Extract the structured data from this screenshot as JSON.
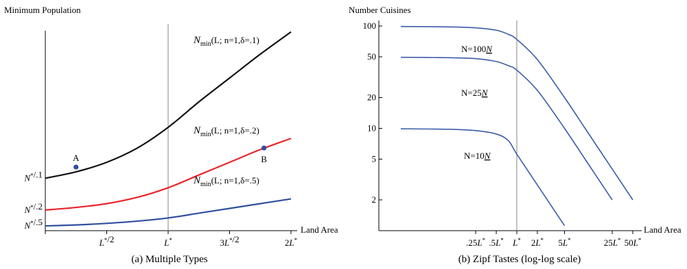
{
  "chart_data": [
    {
      "type": "line",
      "caption": "(a) Multiple Types",
      "ylabel": "Minimum Population",
      "xlabel": "Land Area",
      "x_ticks": [
        {
          "value": 0.5,
          "label": "L*/2"
        },
        {
          "value": 1.0,
          "label": "L*"
        },
        {
          "value": 1.5,
          "label": "3L*/2"
        },
        {
          "value": 2.0,
          "label": "2L*"
        }
      ],
      "y_ticks": [
        {
          "value": 1.0,
          "label": "N*/.5"
        },
        {
          "value": 1.5,
          "label": "N*/.2"
        },
        {
          "value": 2.5,
          "label": "N*/.1"
        }
      ],
      "xlim": [
        0,
        2.05
      ],
      "ylim": [
        0.85,
        7.2
      ],
      "vline_x": 1.0,
      "series": [
        {
          "name": "Nmin(L; n=1,δ=.1)",
          "label_main": "N",
          "label_sub": "min",
          "label_rest": "(L; n=1,δ=.1)",
          "color": "#111111",
          "x": [
            0,
            0.25,
            0.5,
            0.75,
            1.0,
            1.25,
            1.5,
            1.75,
            2.0
          ],
          "y": [
            2.5,
            2.7,
            3.0,
            3.45,
            4.1,
            4.9,
            5.65,
            6.4,
            7.1
          ]
        },
        {
          "name": "Nmin(L; n=1,δ=.2)",
          "label_main": "N",
          "label_sub": "min",
          "label_rest": "(L; n=1,δ=.2)",
          "color": "#e8252a",
          "x": [
            0,
            0.25,
            0.5,
            0.75,
            1.0,
            1.25,
            1.5,
            1.75,
            2.0
          ],
          "y": [
            1.5,
            1.58,
            1.7,
            1.9,
            2.2,
            2.6,
            3.0,
            3.4,
            3.75
          ]
        },
        {
          "name": "Nmin(L; n=1,δ=.5)",
          "label_main": "N",
          "label_sub": "min",
          "label_rest": "(L; n=1,δ=.5)",
          "color": "#2f4f9f",
          "x": [
            0,
            0.25,
            0.5,
            0.75,
            1.0,
            1.25,
            1.5,
            1.75,
            2.0
          ],
          "y": [
            1.0,
            1.03,
            1.08,
            1.15,
            1.25,
            1.4,
            1.55,
            1.7,
            1.85
          ]
        }
      ],
      "points": [
        {
          "label": "A",
          "x": 0.25,
          "y": 2.85,
          "color": "#2f4f9f"
        },
        {
          "label": "B",
          "x": 1.78,
          "y": 3.45,
          "color": "#2f4f9f"
        }
      ]
    },
    {
      "type": "line",
      "caption": "(b) Zipf Tastes (log-log scale)",
      "scale": "log-log",
      "ylabel": "Number Cuisines",
      "xlabel": "Land Area",
      "x_ticks": [
        {
          "value": 0.25,
          "label": ".25L*"
        },
        {
          "value": 0.5,
          "label": ".5L*"
        },
        {
          "value": 1,
          "label": "L*"
        },
        {
          "value": 2,
          "label": "2L*"
        },
        {
          "value": 5,
          "label": "5L*"
        },
        {
          "value": 25,
          "label": "25L*"
        },
        {
          "value": 50,
          "label": "50L*"
        }
      ],
      "y_ticks": [
        {
          "value": 2,
          "label": "2"
        },
        {
          "value": 5,
          "label": "5"
        },
        {
          "value": 10,
          "label": "10"
        },
        {
          "value": 20,
          "label": "20"
        },
        {
          "value": 50,
          "label": "50"
        },
        {
          "value": 100,
          "label": "100"
        }
      ],
      "xlim": [
        0.02,
        60
      ],
      "ylim": [
        1,
        110
      ],
      "vline_x": 1,
      "series": [
        {
          "name": "N=100N",
          "label_main": "N=100",
          "label_under": "N",
          "color": "#3b5ba8",
          "x": [
            0.02,
            0.1,
            0.25,
            0.5,
            0.75,
            1,
            2,
            5,
            10,
            25,
            50
          ],
          "y": [
            99,
            98,
            96,
            91,
            83,
            74,
            47,
            20,
            10,
            4,
            2
          ]
        },
        {
          "name": "N=25N",
          "label_main": "N=25",
          "label_under": "N",
          "color": "#3b5ba8",
          "x": [
            0.02,
            0.1,
            0.25,
            0.5,
            0.75,
            1,
            2,
            5,
            10,
            25
          ],
          "y": [
            49.5,
            49,
            48,
            45,
            41,
            37,
            23.5,
            10,
            5,
            2
          ]
        },
        {
          "name": "N=10N",
          "label_main": "N=10",
          "label_under": "N",
          "color": "#3b5ba8",
          "x": [
            0.02,
            0.1,
            0.25,
            0.5,
            0.75,
            1,
            2,
            5
          ],
          "y": [
            9.9,
            9.8,
            9.5,
            8.8,
            7.6,
            5.6,
            2.8,
            1.12
          ]
        }
      ]
    }
  ]
}
